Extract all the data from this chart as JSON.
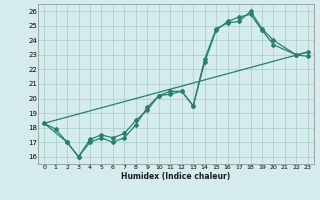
{
  "xlabel": "Humidex (Indice chaleur)",
  "xlim": [
    -0.5,
    23.5
  ],
  "ylim": [
    15.5,
    26.5
  ],
  "xticks": [
    0,
    1,
    2,
    3,
    4,
    5,
    6,
    7,
    8,
    9,
    10,
    11,
    12,
    13,
    14,
    15,
    16,
    17,
    18,
    19,
    20,
    21,
    22,
    23
  ],
  "yticks": [
    16,
    17,
    18,
    19,
    20,
    21,
    22,
    23,
    24,
    25,
    26
  ],
  "line_color": "#2a7d70",
  "bg_color": "#d4ecec",
  "grid_color": "#a8cccc",
  "line1_x": [
    0,
    1,
    2,
    3,
    4,
    5,
    6,
    7,
    8,
    9,
    10,
    11,
    12,
    13,
    14,
    15,
    16,
    17,
    18,
    19,
    20,
    22,
    23
  ],
  "line1_y": [
    18.3,
    17.9,
    17.0,
    16.0,
    17.2,
    17.5,
    17.3,
    17.6,
    18.5,
    19.2,
    20.2,
    20.5,
    20.5,
    19.5,
    22.7,
    24.8,
    25.2,
    25.3,
    26.0,
    24.8,
    24.0,
    23.0,
    23.2
  ],
  "line2_x": [
    0,
    2,
    3,
    4,
    5,
    6,
    7,
    8,
    9,
    10,
    11,
    12,
    13,
    14,
    15,
    16,
    17,
    18,
    19,
    20,
    22,
    23
  ],
  "line2_y": [
    18.3,
    17.0,
    16.0,
    17.0,
    17.3,
    17.0,
    17.3,
    18.2,
    19.4,
    20.2,
    20.3,
    20.5,
    19.5,
    22.5,
    24.7,
    25.3,
    25.6,
    25.8,
    24.7,
    23.7,
    23.0,
    22.9
  ],
  "line3_x": [
    0,
    23
  ],
  "line3_y": [
    18.3,
    23.2
  ]
}
